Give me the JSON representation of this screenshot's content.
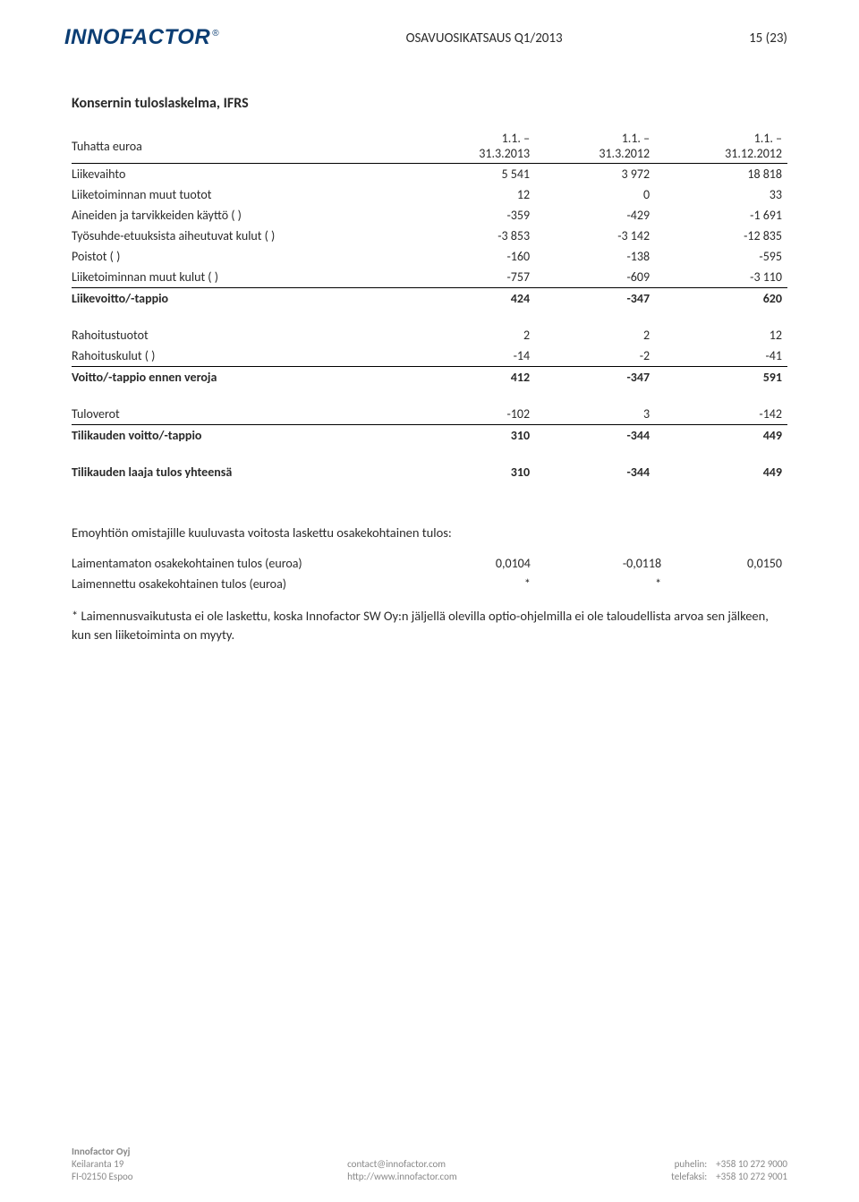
{
  "colors": {
    "logo": "#0b3d73",
    "text": "#2a2a2a",
    "footer": "#888888",
    "rule": "#000000",
    "background": "#ffffff"
  },
  "typography": {
    "body_family": "Calibri, Arial, sans-serif",
    "body_size_pt": 11,
    "title_size_pt": 12,
    "footer_size_pt": 8.5
  },
  "header": {
    "logo_text": "INNOFACTOR",
    "logo_reg": "®",
    "doc_title": "OSAVUOSIKATSAUS Q1/2013",
    "page_num": "15 (23)"
  },
  "section_title": "Konsernin tuloslaskelma, IFRS",
  "table": {
    "columns": [
      "Tuhatta euroa",
      "1.1. – 31.3.2013",
      "1.1. – 31.3.2012",
      "1.1. – 31.12.2012"
    ],
    "col_widths_pct": [
      48,
      17,
      17,
      18
    ],
    "blocks": [
      {
        "rows": [
          {
            "label": "Liikevaihto",
            "v": [
              "5 541",
              "3 972",
              "18 818"
            ]
          },
          {
            "label": "Liiketoiminnan muut tuotot",
            "v": [
              "12",
              "0",
              "33"
            ]
          },
          {
            "label": "Aineiden ja tarvikkeiden käyttö ( )",
            "v": [
              "-359",
              "-429",
              "-1 691"
            ]
          },
          {
            "label": "Työsuhde-etuuksista aiheutuvat kulut ( )",
            "v": [
              "-3 853",
              "-3 142",
              "-12 835"
            ]
          },
          {
            "label": "Poistot ( )",
            "v": [
              "-160",
              "-138",
              "-595"
            ]
          },
          {
            "label": "Liiketoiminnan muut kulut ( )",
            "v": [
              "-757",
              "-609",
              "-3 110"
            ],
            "line": true
          }
        ],
        "total": {
          "label": "Liikevoitto/-tappio",
          "v": [
            "424",
            "-347",
            "620"
          ],
          "bold": true
        }
      },
      {
        "rows": [
          {
            "label": "Rahoitustuotot",
            "v": [
              "2",
              "2",
              "12"
            ]
          },
          {
            "label": "Rahoituskulut ( )",
            "v": [
              "-14",
              "-2",
              "-41"
            ],
            "line": true
          }
        ],
        "total": {
          "label": "Voitto/-tappio ennen veroja",
          "v": [
            "412",
            "-347",
            "591"
          ],
          "bold": true
        }
      },
      {
        "rows": [
          {
            "label": "Tuloverot",
            "v": [
              "-102",
              "3",
              "-142"
            ],
            "line": true
          }
        ],
        "total": {
          "label": "Tilikauden voitto/-tappio",
          "v": [
            "310",
            "-344",
            "449"
          ],
          "bold": true
        }
      },
      {
        "rows": [],
        "total": {
          "label": "Tilikauden laaja tulos yhteensä",
          "v": [
            "310",
            "-344",
            "449"
          ],
          "bold": true
        }
      }
    ]
  },
  "eps_section": {
    "intro": "Emoyhtiön omistajille kuuluvasta voitosta laskettu osakekohtainen tulos:",
    "rows": [
      {
        "label": "Laimentamaton osakekohtainen tulos (euroa)",
        "v": [
          "0,0104",
          "-0,0118",
          "0,0150"
        ]
      },
      {
        "label": "Laimennettu osakekohtainen tulos (euroa)",
        "v": [
          "*",
          "*",
          ""
        ]
      }
    ]
  },
  "footnote": "* Laimennusvaikutusta ei ole laskettu, koska Innofactor SW Oy:n jäljellä olevilla optio-ohjelmilla ei ole taloudellista arvoa sen jälkeen, kun sen liiketoiminta on myyty.",
  "footer": {
    "left": {
      "company": "Innofactor Oyj",
      "addr1": "Keilaranta 19",
      "addr2": "FI-02150 Espoo"
    },
    "middle": {
      "l1": "contact@innofactor.com",
      "l2": "http://www.innofactor.com"
    },
    "right": {
      "l1_label": "puhelin:",
      "l1_val": "+358 10 272 9000",
      "l2_label": "telefaksi:",
      "l2_val": "+358 10 272 9001"
    }
  }
}
